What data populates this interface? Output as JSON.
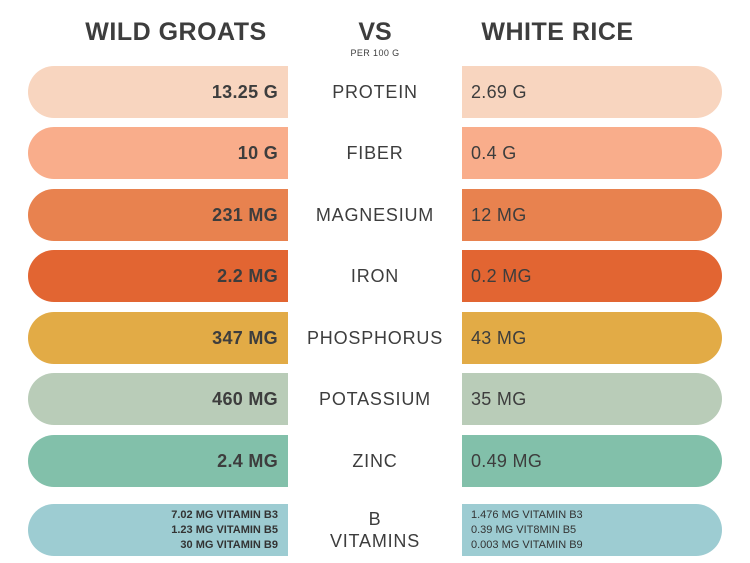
{
  "header": {
    "left_title": "WILD GROATS",
    "vs": "VS",
    "per": "PER 100 G",
    "right_title": "WHITE RICE"
  },
  "rows": [
    {
      "nutrient": "PROTEIN",
      "left": "13.25 G",
      "right": "2.69 G",
      "color": "#f8d5bf"
    },
    {
      "nutrient": "FIBER",
      "left": "10 G",
      "right": "0.4 G",
      "color": "#f9ad8b"
    },
    {
      "nutrient": "MAGNESIUM",
      "left": "231 MG",
      "right": "12 MG",
      "color": "#e8824f"
    },
    {
      "nutrient": "IRON",
      "left": "2.2 MG",
      "right": "0.2 MG",
      "color": "#e26532"
    },
    {
      "nutrient": "PHOSPHORUS",
      "left": "347 MG",
      "right": "43 MG",
      "color": "#e2ab46"
    },
    {
      "nutrient": "POTASSIUM",
      "left": "460 MG",
      "right": "35 MG",
      "color": "#b9ccb8"
    },
    {
      "nutrient": "ZINC",
      "left": "2.4 MG",
      "right": "0.49 MG",
      "color": "#82c0aa"
    }
  ],
  "b_vitamins": {
    "nutrient_line1": "B",
    "nutrient_line2": "VITAMINS",
    "color": "#9dccd2",
    "left": [
      "7.02 MG VITAMIN B3",
      "1.23 MG VITAMIN B5",
      "30 MG VITAMIN B9"
    ],
    "right": [
      "1.476 MG VITAMIN B3",
      "0.39 MG VIT8MIN B5",
      "0.003  MG VITAMIN B9"
    ]
  }
}
